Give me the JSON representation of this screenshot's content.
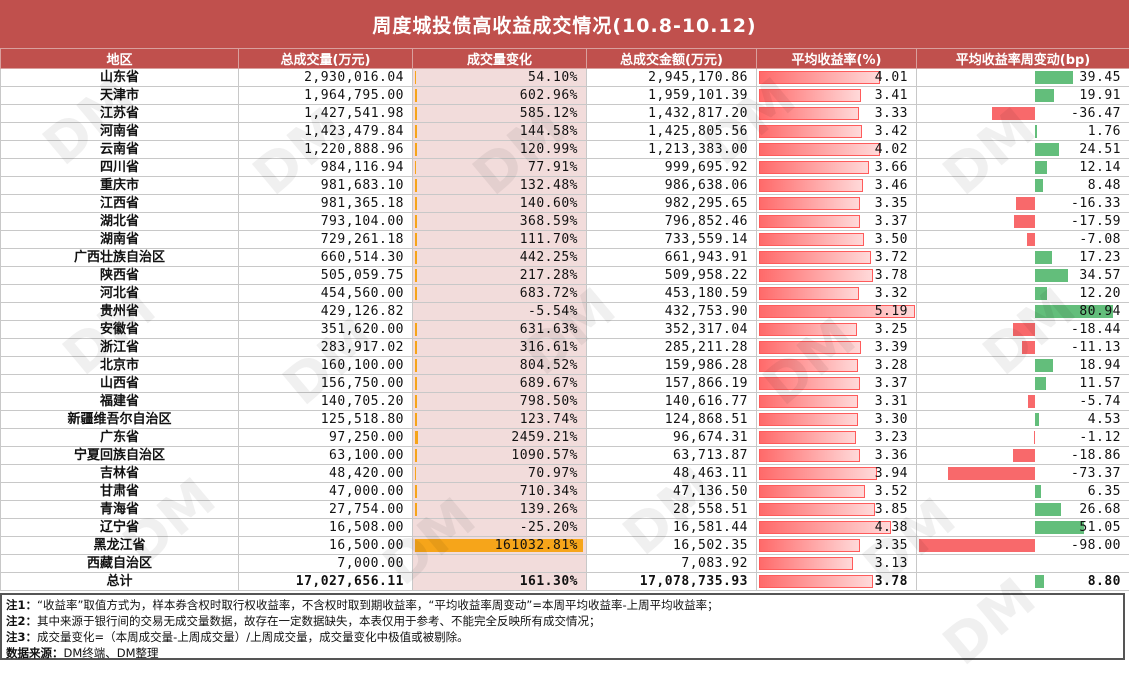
{
  "title": "周度城投债高收益成交情况(10.8-10.12)",
  "columns": [
    "地区",
    "总成交量(万元)",
    "成交量变化",
    "总成交金额(万元)",
    "平均收益率(%)",
    "平均收益率周变动(bp)"
  ],
  "rows": [
    {
      "region": "山东省",
      "volume": "2,930,016.04",
      "change": "54.10%",
      "amount": "2,945,170.86",
      "yield": "4.01",
      "delta": "39.45"
    },
    {
      "region": "天津市",
      "volume": "1,964,795.00",
      "change": "602.96%",
      "amount": "1,959,101.39",
      "yield": "3.41",
      "delta": "19.91"
    },
    {
      "region": "江苏省",
      "volume": "1,427,541.98",
      "change": "585.12%",
      "amount": "1,432,817.20",
      "yield": "3.33",
      "delta": "-36.47"
    },
    {
      "region": "河南省",
      "volume": "1,423,479.84",
      "change": "144.58%",
      "amount": "1,425,805.56",
      "yield": "3.42",
      "delta": "1.76"
    },
    {
      "region": "云南省",
      "volume": "1,220,888.96",
      "change": "120.99%",
      "amount": "1,213,383.00",
      "yield": "4.02",
      "delta": "24.51"
    },
    {
      "region": "四川省",
      "volume": "984,116.94",
      "change": "77.91%",
      "amount": "999,695.92",
      "yield": "3.66",
      "delta": "12.14"
    },
    {
      "region": "重庆市",
      "volume": "981,683.10",
      "change": "132.48%",
      "amount": "986,638.06",
      "yield": "3.46",
      "delta": "8.48"
    },
    {
      "region": "江西省",
      "volume": "981,365.18",
      "change": "140.60%",
      "amount": "982,295.65",
      "yield": "3.35",
      "delta": "-16.33"
    },
    {
      "region": "湖北省",
      "volume": "793,104.00",
      "change": "368.59%",
      "amount": "796,852.46",
      "yield": "3.37",
      "delta": "-17.59"
    },
    {
      "region": "湖南省",
      "volume": "729,261.18",
      "change": "111.70%",
      "amount": "733,559.14",
      "yield": "3.50",
      "delta": "-7.08"
    },
    {
      "region": "广西壮族自治区",
      "volume": "660,514.30",
      "change": "442.25%",
      "amount": "661,943.91",
      "yield": "3.72",
      "delta": "17.23"
    },
    {
      "region": "陕西省",
      "volume": "505,059.75",
      "change": "217.28%",
      "amount": "509,958.22",
      "yield": "3.78",
      "delta": "34.57"
    },
    {
      "region": "河北省",
      "volume": "454,560.00",
      "change": "683.72%",
      "amount": "453,180.59",
      "yield": "3.32",
      "delta": "12.20"
    },
    {
      "region": "贵州省",
      "volume": "429,126.82",
      "change": "-5.54%",
      "amount": "432,753.90",
      "yield": "5.19",
      "delta": "80.94"
    },
    {
      "region": "安徽省",
      "volume": "351,620.00",
      "change": "631.63%",
      "amount": "352,317.04",
      "yield": "3.25",
      "delta": "-18.44"
    },
    {
      "region": "浙江省",
      "volume": "283,917.02",
      "change": "316.61%",
      "amount": "285,211.28",
      "yield": "3.39",
      "delta": "-11.13"
    },
    {
      "region": "北京市",
      "volume": "160,100.00",
      "change": "804.52%",
      "amount": "159,986.28",
      "yield": "3.28",
      "delta": "18.94"
    },
    {
      "region": "山西省",
      "volume": "156,750.00",
      "change": "689.67%",
      "amount": "157,866.19",
      "yield": "3.37",
      "delta": "11.57"
    },
    {
      "region": "福建省",
      "volume": "140,705.20",
      "change": "798.50%",
      "amount": "140,616.77",
      "yield": "3.31",
      "delta": "-5.74"
    },
    {
      "region": "新疆维吾尔自治区",
      "volume": "125,518.80",
      "change": "123.74%",
      "amount": "124,868.51",
      "yield": "3.30",
      "delta": "4.53"
    },
    {
      "region": "广东省",
      "volume": "97,250.00",
      "change": "2459.21%",
      "amount": "96,674.31",
      "yield": "3.23",
      "delta": "-1.12"
    },
    {
      "region": "宁夏回族自治区",
      "volume": "63,100.00",
      "change": "1090.57%",
      "amount": "63,713.87",
      "yield": "3.36",
      "delta": "-18.86"
    },
    {
      "region": "吉林省",
      "volume": "48,420.00",
      "change": "70.97%",
      "amount": "48,463.11",
      "yield": "3.94",
      "delta": "-73.37"
    },
    {
      "region": "甘肃省",
      "volume": "47,000.00",
      "change": "710.34%",
      "amount": "47,136.50",
      "yield": "3.52",
      "delta": "6.35"
    },
    {
      "region": "青海省",
      "volume": "27,754.00",
      "change": "139.26%",
      "amount": "28,558.51",
      "yield": "3.85",
      "delta": "26.68"
    },
    {
      "region": "辽宁省",
      "volume": "16,508.00",
      "change": "-25.20%",
      "amount": "16,581.44",
      "yield": "4.38",
      "delta": "51.05"
    },
    {
      "region": "黑龙江省",
      "volume": "16,500.00",
      "change": "161032.81%",
      "amount": "16,502.35",
      "yield": "3.35",
      "delta": "-98.00"
    },
    {
      "region": "西藏自治区",
      "volume": "7,000.00",
      "change": "",
      "amount": "7,083.92",
      "yield": "3.13",
      "delta": ""
    }
  ],
  "total": {
    "region": "总计",
    "volume": "17,027,656.11",
    "change": "161.30%",
    "amount": "17,078,735.93",
    "yield": "3.78",
    "delta": "8.80"
  },
  "notes": [
    {
      "label": "注1：",
      "text": "“收益率”取值方式为，样本券含权时取行权收益率，不含权时取到期收益率，“平均收益率周变动”=本周平均收益率-上周平均收益率；"
    },
    {
      "label": "注2：",
      "text": "其中来源于银行间的交易无成交量数据，故存在一定数据缺失，本表仅用于参考、不能完全反映所有成交情况；"
    },
    {
      "label": "注3：",
      "text": "成交量变化=（本周成交量-上周成交量）/上周成交量，成交量变化中极值或被剔除。"
    },
    {
      "label": "数据来源：",
      "text": "DM终端、DM整理"
    }
  ],
  "watermark": "DM",
  "colors": {
    "header": "#c0504d",
    "change_bg": "#f2dcdb",
    "change_bar": "#f6a51a",
    "yield_bar": "#ff5b5b",
    "delta_pos": "#63be7b",
    "delta_neg": "#f8696b"
  }
}
